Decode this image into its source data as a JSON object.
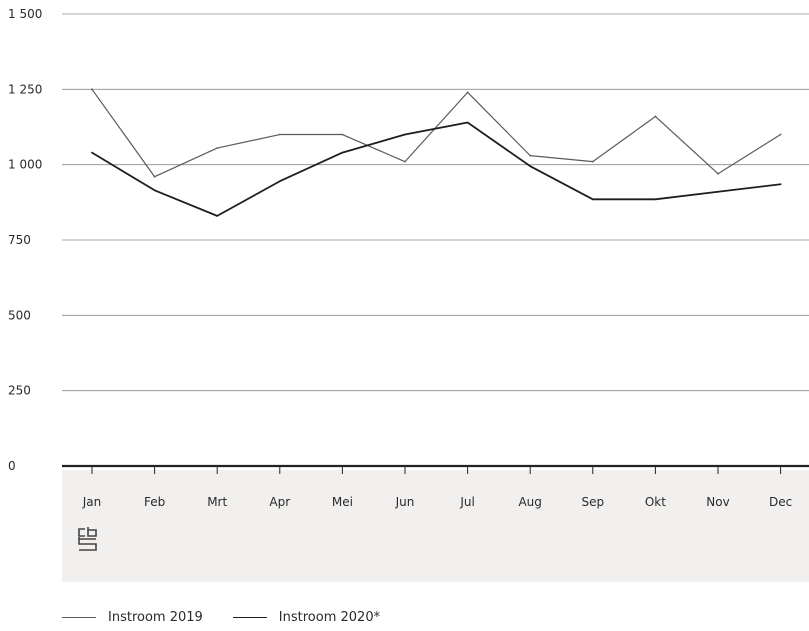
{
  "chart_data": {
    "type": "line",
    "categories": [
      "Jan",
      "Feb",
      "Mrt",
      "Apr",
      "Mei",
      "Jun",
      "Jul",
      "Aug",
      "Sep",
      "Okt",
      "Nov",
      "Dec"
    ],
    "series": [
      {
        "name": "Instroom 2019",
        "color": "#5a5a5a",
        "values": [
          1250,
          960,
          1055,
          1100,
          1100,
          1010,
          1240,
          1030,
          1010,
          1160,
          970,
          1100
        ]
      },
      {
        "name": "Instroom 2020*",
        "color": "#1e1e1e",
        "values": [
          1040,
          915,
          830,
          945,
          1040,
          1100,
          1140,
          995,
          885,
          885,
          910,
          935
        ]
      }
    ],
    "ylim": [
      0,
      1500
    ],
    "yticks": [
      0,
      250,
      500,
      750,
      1000,
      1250,
      1500
    ],
    "ytick_labels": [
      "0",
      "250",
      "500",
      "750",
      "1 000",
      "1 250",
      "1 500"
    ],
    "grid": true,
    "legend_position": "bottom-left",
    "title": "",
    "xlabel": "",
    "ylabel": ""
  },
  "logo": {
    "text": "cbs",
    "icon": "cbs-logo-icon"
  },
  "colors": {
    "gridline": "#8c8c8c",
    "axis": "#222222",
    "footer_band": "#f2f0ef"
  }
}
